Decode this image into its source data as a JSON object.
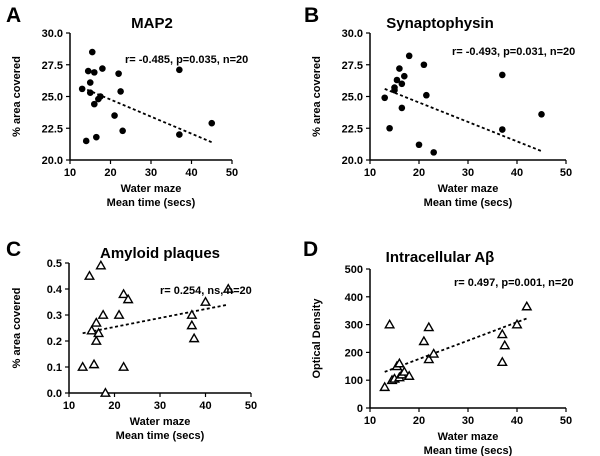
{
  "chart_data": [
    {
      "panel": "A",
      "type": "scatter",
      "title": "MAP2",
      "marker": "filled-circle",
      "xlabel": [
        "Water maze",
        "Mean time (secs)"
      ],
      "ylabel": "% area covered",
      "xlim": [
        10,
        50
      ],
      "ylim": [
        20.0,
        30.0
      ],
      "xticks": [
        10,
        20,
        30,
        40,
        50
      ],
      "yticks": [
        20.0,
        22.5,
        25.0,
        27.5,
        30.0
      ],
      "ytick_labels": [
        "20.0",
        "22.5",
        "25.0",
        "27.5",
        "30.0"
      ],
      "annotation": "r= -0.485, p=0.035, n=20",
      "points": [
        {
          "x": 13,
          "y": 25.6
        },
        {
          "x": 14,
          "y": 21.5
        },
        {
          "x": 14.5,
          "y": 27.0
        },
        {
          "x": 15,
          "y": 26.1
        },
        {
          "x": 15,
          "y": 25.3
        },
        {
          "x": 15.5,
          "y": 28.5
        },
        {
          "x": 16,
          "y": 24.4
        },
        {
          "x": 16,
          "y": 26.9
        },
        {
          "x": 16.5,
          "y": 21.8
        },
        {
          "x": 17,
          "y": 24.8
        },
        {
          "x": 17.5,
          "y": 25.0
        },
        {
          "x": 18,
          "y": 27.2
        },
        {
          "x": 21,
          "y": 23.5
        },
        {
          "x": 22,
          "y": 26.8
        },
        {
          "x": 22.5,
          "y": 25.4
        },
        {
          "x": 23,
          "y": 22.3
        },
        {
          "x": 37,
          "y": 27.1
        },
        {
          "x": 37,
          "y": 22.0
        },
        {
          "x": 45,
          "y": 22.9
        }
      ],
      "trendline": {
        "x": [
          13,
          45
        ],
        "y": [
          25.7,
          21.4
        ]
      }
    },
    {
      "panel": "B",
      "type": "scatter",
      "title": "Synaptophysin",
      "marker": "filled-circle",
      "xlabel": [
        "Water maze",
        "Mean time (secs)"
      ],
      "ylabel": "% area covered",
      "xlim": [
        10,
        50
      ],
      "ylim": [
        20.0,
        30.0
      ],
      "xticks": [
        10,
        20,
        30,
        40,
        50
      ],
      "yticks": [
        20.0,
        22.5,
        25.0,
        27.5,
        30.0
      ],
      "ytick_labels": [
        "20.0",
        "22.5",
        "25.0",
        "27.5",
        "30.0"
      ],
      "annotation": "r= -0.493, p=0.031, n=20",
      "points": [
        {
          "x": 13,
          "y": 24.9
        },
        {
          "x": 14,
          "y": 22.5
        },
        {
          "x": 15,
          "y": 25.5
        },
        {
          "x": 15.5,
          "y": 26.3
        },
        {
          "x": 16,
          "y": 27.2
        },
        {
          "x": 16.5,
          "y": 26.0
        },
        {
          "x": 16.5,
          "y": 24.1
        },
        {
          "x": 17,
          "y": 26.6
        },
        {
          "x": 18,
          "y": 28.2
        },
        {
          "x": 20,
          "y": 21.2
        },
        {
          "x": 21,
          "y": 27.5
        },
        {
          "x": 21.5,
          "y": 25.1
        },
        {
          "x": 23,
          "y": 20.6
        },
        {
          "x": 37,
          "y": 26.7
        },
        {
          "x": 37,
          "y": 22.4
        },
        {
          "x": 45,
          "y": 23.6
        },
        {
          "x": 15,
          "y": 25.7
        }
      ],
      "trendline": {
        "x": [
          13,
          45
        ],
        "y": [
          25.6,
          20.7
        ]
      }
    },
    {
      "panel": "C",
      "type": "scatter",
      "title": "Amyloid plaques",
      "marker": "open-triangle",
      "xlabel": [
        "Water maze",
        "Mean time (secs)"
      ],
      "ylabel": "% area covered",
      "xlim": [
        10,
        50
      ],
      "ylim": [
        0.0,
        0.5
      ],
      "xticks": [
        10,
        20,
        30,
        40,
        50
      ],
      "yticks": [
        0.0,
        0.1,
        0.2,
        0.3,
        0.4,
        0.5
      ],
      "ytick_labels": [
        "0.0",
        "0.1",
        "0.2",
        "0.3",
        "0.4",
        "0.5"
      ],
      "annotation": "r= 0.254, ns, n=20",
      "points": [
        {
          "x": 13,
          "y": 0.1
        },
        {
          "x": 14.5,
          "y": 0.45
        },
        {
          "x": 15,
          "y": 0.24
        },
        {
          "x": 15.5,
          "y": 0.11
        },
        {
          "x": 16,
          "y": 0.27
        },
        {
          "x": 16,
          "y": 0.2
        },
        {
          "x": 16.5,
          "y": 0.23
        },
        {
          "x": 17,
          "y": 0.49
        },
        {
          "x": 17.5,
          "y": 0.3
        },
        {
          "x": 18,
          "y": 0.0
        },
        {
          "x": 21,
          "y": 0.3
        },
        {
          "x": 22,
          "y": 0.38
        },
        {
          "x": 22,
          "y": 0.1
        },
        {
          "x": 23,
          "y": 0.36
        },
        {
          "x": 37,
          "y": 0.3
        },
        {
          "x": 37,
          "y": 0.26
        },
        {
          "x": 37.5,
          "y": 0.21
        },
        {
          "x": 40,
          "y": 0.35
        },
        {
          "x": 45,
          "y": 0.4
        }
      ],
      "trendline": {
        "x": [
          13,
          45
        ],
        "y": [
          0.23,
          0.34
        ]
      }
    },
    {
      "panel": "D",
      "type": "scatter",
      "title": "Intracellular Aβ",
      "marker": "open-triangle",
      "xlabel": [
        "Water maze",
        "Mean time (secs)"
      ],
      "ylabel": "Optical Density",
      "xlim": [
        10,
        50
      ],
      "ylim": [
        0,
        500
      ],
      "xticks": [
        10,
        20,
        30,
        40,
        50
      ],
      "yticks": [
        0,
        100,
        200,
        300,
        400,
        500
      ],
      "ytick_labels": [
        "0",
        "100",
        "200",
        "300",
        "400",
        "500"
      ],
      "annotation": "r= 0.497, p=0.001, n=20",
      "points": [
        {
          "x": 13,
          "y": 75
        },
        {
          "x": 14,
          "y": 300
        },
        {
          "x": 14.5,
          "y": 100
        },
        {
          "x": 15,
          "y": 105
        },
        {
          "x": 15.5,
          "y": 150
        },
        {
          "x": 16,
          "y": 160
        },
        {
          "x": 16,
          "y": 110
        },
        {
          "x": 16.5,
          "y": 120
        },
        {
          "x": 17,
          "y": 130
        },
        {
          "x": 18,
          "y": 115
        },
        {
          "x": 21,
          "y": 240
        },
        {
          "x": 22,
          "y": 290
        },
        {
          "x": 22,
          "y": 175
        },
        {
          "x": 23,
          "y": 195
        },
        {
          "x": 37,
          "y": 265
        },
        {
          "x": 37,
          "y": 165
        },
        {
          "x": 37.5,
          "y": 225
        },
        {
          "x": 40,
          "y": 300
        },
        {
          "x": 42,
          "y": 365
        }
      ],
      "trendline": {
        "x": [
          13,
          42
        ],
        "y": [
          130,
          322
        ]
      }
    }
  ]
}
